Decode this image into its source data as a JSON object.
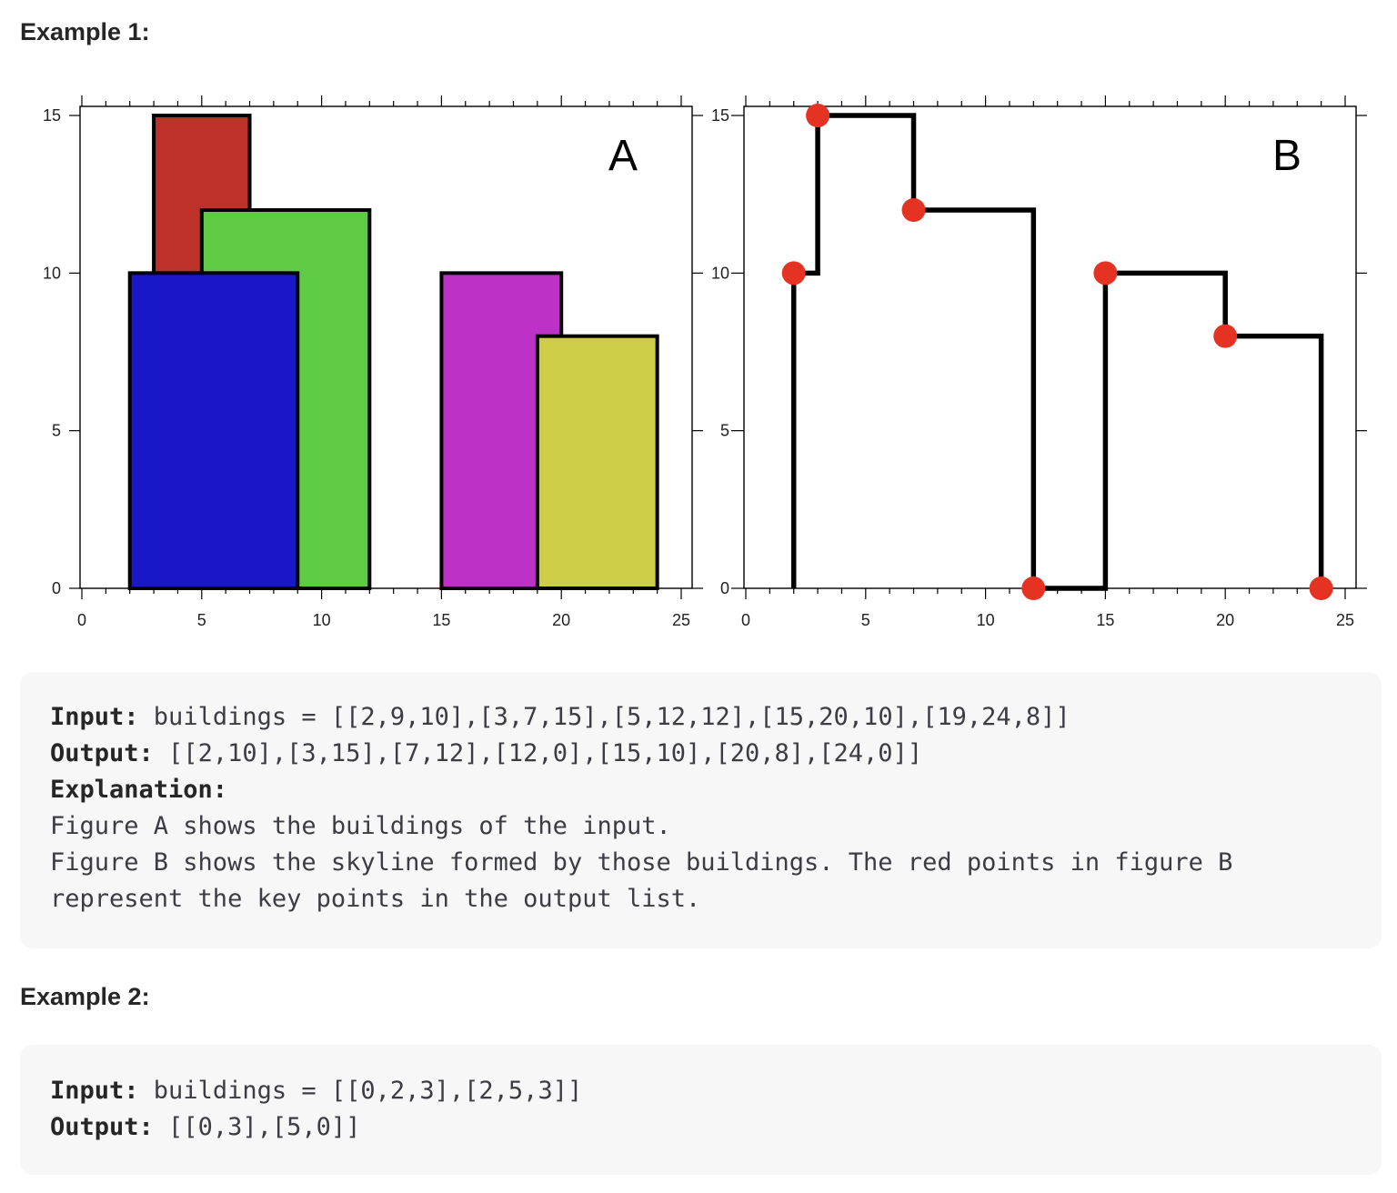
{
  "example1": {
    "heading": "Example 1:",
    "code": {
      "input_label": "Input:",
      "input_value": " buildings = [[2,9,10],[3,7,15],[5,12,12],[15,20,10],[19,24,8]]",
      "output_label": "Output:",
      "output_value": " [[2,10],[3,15],[7,12],[12,0],[15,10],[20,8],[24,0]]",
      "explanation_label": "Explanation:",
      "explanation_lines": [
        "Figure A shows the buildings of the input.",
        "Figure B shows the skyline formed by those buildings. The red points in figure B",
        "represent the key points in the output list."
      ]
    }
  },
  "example2": {
    "heading": "Example 2:",
    "code": {
      "input_label": "Input:",
      "input_value": " buildings = [[0,2,3],[2,5,3]]",
      "output_label": "Output:",
      "output_value": " [[0,3],[5,0]]"
    }
  },
  "chart_data": [
    {
      "type": "bar",
      "title": "A",
      "xlim": [
        0,
        25
      ],
      "ylim": [
        0,
        15
      ],
      "x_ticks": [
        0,
        5,
        10,
        15,
        20,
        25
      ],
      "y_ticks": [
        0,
        5,
        10,
        15
      ],
      "grid": false,
      "buildings": [
        {
          "left": 3,
          "right": 7,
          "height": 15,
          "color": "#bd3128"
        },
        {
          "left": 5,
          "right": 12,
          "height": 12,
          "color": "#5fcb44"
        },
        {
          "left": 2,
          "right": 9,
          "height": 10,
          "color": "#1a18c6"
        },
        {
          "left": 15,
          "right": 20,
          "height": 10,
          "color": "#bc32c6"
        },
        {
          "left": 19,
          "right": 24,
          "height": 8,
          "color": "#cdcd47"
        }
      ]
    },
    {
      "type": "line",
      "title": "B",
      "xlim": [
        0,
        25
      ],
      "ylim": [
        0,
        15
      ],
      "x_ticks": [
        0,
        5,
        10,
        15,
        20,
        25
      ],
      "y_ticks": [
        0,
        5,
        10,
        15
      ],
      "grid": false,
      "line_color": "#000000",
      "point_color": "#e43323",
      "skyline_start": [
        2,
        0
      ],
      "key_points": [
        [
          2,
          10
        ],
        [
          3,
          15
        ],
        [
          7,
          12
        ],
        [
          12,
          0
        ],
        [
          15,
          10
        ],
        [
          20,
          8
        ],
        [
          24,
          0
        ]
      ]
    }
  ]
}
